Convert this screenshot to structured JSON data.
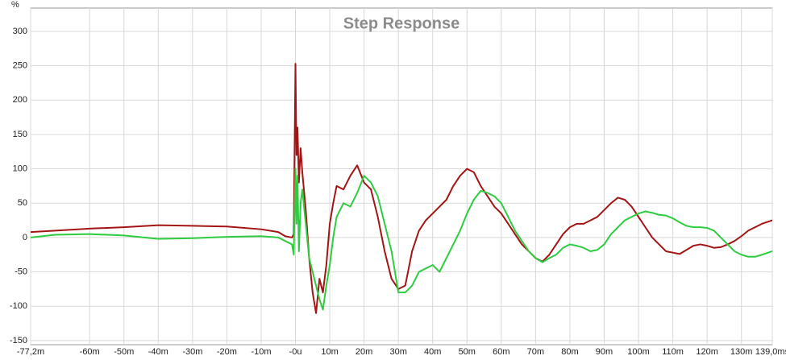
{
  "chart_data": {
    "type": "line",
    "title": "Step Response",
    "y_unit": "%",
    "x": [
      -77.2,
      -70,
      -60,
      -50,
      -40,
      -30,
      -20,
      -10,
      -5,
      -3,
      -1,
      -0.5,
      0,
      0.3,
      0.6,
      1,
      1.5,
      2,
      3,
      4,
      5,
      6,
      7,
      8,
      9,
      10,
      11,
      12,
      14,
      16,
      18,
      20,
      22,
      24,
      26,
      28,
      30,
      32,
      34,
      36,
      38,
      40,
      42,
      44,
      46,
      48,
      50,
      52,
      54,
      56,
      58,
      60,
      62,
      64,
      66,
      68,
      70,
      72,
      74,
      76,
      78,
      80,
      82,
      84,
      86,
      88,
      90,
      92,
      94,
      96,
      98,
      100,
      102,
      104,
      106,
      108,
      110,
      112,
      114,
      116,
      118,
      120,
      122,
      124,
      126,
      128,
      130,
      132,
      134,
      136,
      139
    ],
    "series": [
      {
        "color": "#a31515",
        "values": [
          8,
          10,
          13,
          15,
          18,
          17,
          16,
          12,
          8,
          2,
          0,
          5,
          253,
          120,
          160,
          80,
          130,
          95,
          40,
          -30,
          -80,
          -110,
          -60,
          -80,
          -40,
          20,
          50,
          75,
          70,
          90,
          105,
          80,
          70,
          30,
          -20,
          -60,
          -75,
          -70,
          -20,
          10,
          25,
          35,
          45,
          55,
          75,
          90,
          100,
          95,
          75,
          60,
          45,
          35,
          20,
          5,
          -10,
          -20,
          -30,
          -35,
          -25,
          -10,
          5,
          15,
          20,
          20,
          25,
          30,
          40,
          50,
          58,
          55,
          45,
          30,
          15,
          0,
          -10,
          -20,
          -22,
          -24,
          -18,
          -12,
          -10,
          -12,
          -15,
          -14,
          -10,
          -5,
          2,
          10,
          15,
          20,
          25
        ]
      },
      {
        "color": "#2ecc40",
        "values": [
          0,
          4,
          5,
          3,
          -2,
          -1,
          1,
          2,
          0,
          -5,
          -10,
          -25,
          100,
          20,
          90,
          -20,
          50,
          70,
          20,
          -30,
          -50,
          -70,
          -90,
          -105,
          -70,
          -40,
          0,
          30,
          50,
          45,
          65,
          90,
          80,
          60,
          20,
          -20,
          -80,
          -80,
          -70,
          -50,
          -45,
          -40,
          -50,
          -30,
          -10,
          10,
          35,
          55,
          68,
          65,
          60,
          50,
          30,
          10,
          -5,
          -20,
          -30,
          -36,
          -30,
          -25,
          -15,
          -10,
          -12,
          -15,
          -20,
          -18,
          -10,
          5,
          15,
          25,
          30,
          35,
          38,
          36,
          33,
          32,
          28,
          22,
          17,
          15,
          15,
          14,
          10,
          0,
          -10,
          -20,
          -25,
          -28,
          -28,
          -25,
          -20
        ]
      }
    ],
    "xlim": [
      -77.2,
      139.0
    ],
    "xticks": [
      {
        "value": -77.2,
        "label": "-77,2m"
      },
      {
        "value": -60,
        "label": "-60m"
      },
      {
        "value": -50,
        "label": "-50m"
      },
      {
        "value": -40,
        "label": "-40m"
      },
      {
        "value": -30,
        "label": "-30m"
      },
      {
        "value": -20,
        "label": "-20m"
      },
      {
        "value": -10,
        "label": "-10m"
      },
      {
        "value": 0,
        "label": "-0u"
      },
      {
        "value": 10,
        "label": "10m"
      },
      {
        "value": 20,
        "label": "20m"
      },
      {
        "value": 30,
        "label": "30m"
      },
      {
        "value": 40,
        "label": "40m"
      },
      {
        "value": 50,
        "label": "50m"
      },
      {
        "value": 60,
        "label": "60m"
      },
      {
        "value": 70,
        "label": "70m"
      },
      {
        "value": 80,
        "label": "80m"
      },
      {
        "value": 90,
        "label": "90m"
      },
      {
        "value": 100,
        "label": "100m"
      },
      {
        "value": 110,
        "label": "110m"
      },
      {
        "value": 120,
        "label": "120m"
      },
      {
        "value": 130,
        "label": "130m"
      },
      {
        "value": 139.0,
        "label": "139,0ms"
      }
    ],
    "ylim": [
      -156,
      334
    ],
    "yticks": [
      -150,
      -100,
      -50,
      0,
      50,
      100,
      150,
      200,
      250,
      300
    ],
    "grid": true
  }
}
